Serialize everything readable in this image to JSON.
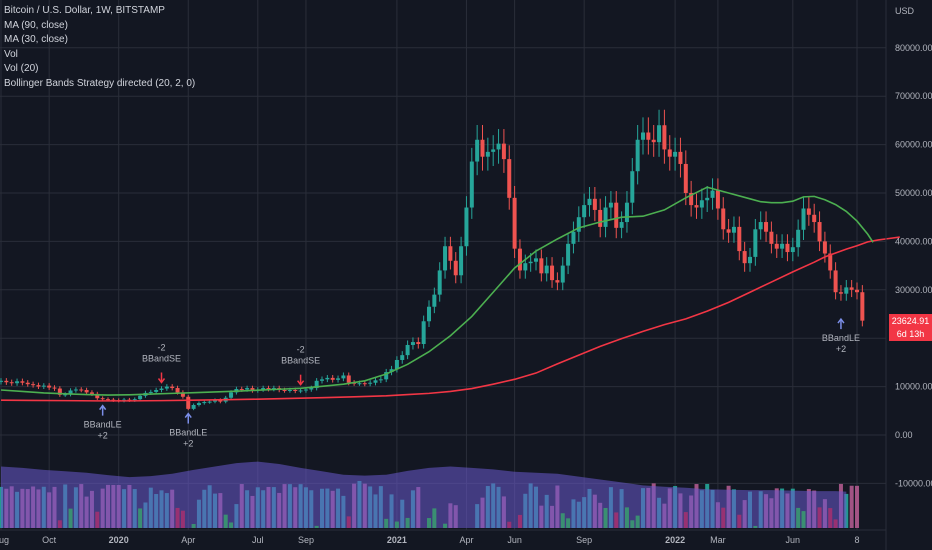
{
  "legend": {
    "title": "Bitcoin / U.S. Dollar, 1W, BITSTAMP",
    "ma90": "MA (90, close)",
    "ma30": "MA (30, close)",
    "vol": "Vol",
    "vol20": "Vol (20)",
    "strategy": "Bollinger Bands Strategy directed (20, 2, 0)"
  },
  "price_tag": {
    "price": "23624.91",
    "countdown": "6d 13h"
  },
  "colors": {
    "background": "#131722",
    "grid": "#2a2e39",
    "up": "#26a69a",
    "down": "#ef5350",
    "ma90": "#f23645",
    "ma30": "#4caf50",
    "vol_avg_fill": "#6a5acd",
    "vol_up": "#00e600",
    "vol_down": "#e60000",
    "signal_long": "#7b8ee8",
    "signal_short": "#f23645",
    "axis_text": "#b2b5be"
  },
  "chart_data": {
    "type": "candlestick",
    "currency": "USD",
    "y_axis_ticks": [
      "80000.00",
      "70000.00",
      "60000.00",
      "50000.00",
      "40000.00",
      "30000.00",
      "20000.00",
      "10000.00",
      "0.00",
      "-10000.00"
    ],
    "ylim": [
      -16000,
      84000
    ],
    "x_axis_ticks": [
      "Aug",
      "Oct",
      "2020",
      "Apr",
      "Jul",
      "Sep",
      "2021",
      "Apr",
      "Jun",
      "Sep",
      "2022",
      "Mar",
      "Jun",
      "8"
    ],
    "x_tick_weeks": [
      0,
      9,
      22,
      35,
      48,
      57,
      74,
      87,
      96,
      109,
      126,
      134,
      148,
      160
    ],
    "candles_close": [
      11200,
      10900,
      10700,
      11100,
      10800,
      10500,
      10300,
      10000,
      10200,
      9800,
      9600,
      8300,
      8400,
      9200,
      9400,
      9300,
      8800,
      8500,
      7600,
      7400,
      7300,
      7200,
      7100,
      7300,
      7200,
      7400,
      8100,
      8700,
      8900,
      9300,
      9600,
      10000,
      9700,
      8800,
      7900,
      5400,
      6200,
      6600,
      6800,
      6900,
      7200,
      6900,
      7700,
      8800,
      9500,
      9400,
      9700,
      9200,
      9400,
      9700,
      9500,
      9700,
      9300,
      9200,
      9300,
      9100,
      9200,
      9400,
      9700,
      11200,
      11500,
      11800,
      11400,
      11700,
      12300,
      10800,
      10700,
      10700,
      10600,
      10800,
      11300,
      11500,
      13000,
      13600,
      15500,
      16500,
      18600,
      19200,
      18800,
      23500,
      26500,
      29000,
      34000,
      39000,
      36000,
      33000,
      39000,
      47000,
      56500,
      61000,
      57500,
      58500,
      59000,
      60200,
      57000,
      49000,
      38500,
      34000,
      35500,
      35800,
      36500,
      33400,
      35000,
      32000,
      31500,
      35000,
      39500,
      42000,
      45000,
      47500,
      48800,
      46500,
      43000,
      47000,
      48000,
      42800,
      44000,
      48000,
      54500,
      61000,
      62500,
      61000,
      60500,
      64000,
      59000,
      57500,
      58500,
      56000,
      50000,
      47500,
      47000,
      48500,
      49000,
      50500,
      46800,
      42500,
      41800,
      43000,
      38000,
      35500,
      36800,
      42500,
      44000,
      42000,
      39500,
      38500,
      39500,
      37800,
      38800,
      42400,
      46800,
      45500,
      44000,
      40000,
      37500,
      34000,
      29500,
      29200,
      30500,
      30000,
      29500,
      23625
    ],
    "ma30": [
      9300,
      9000,
      8700,
      8500,
      8350,
      8250,
      8300,
      8450,
      8600,
      8750,
      8900,
      9050,
      9250,
      9450,
      9650,
      10050,
      10500,
      11200,
      12600,
      14600,
      17200,
      20500,
      24500,
      29500,
      34500,
      38000,
      40500,
      42800,
      44000,
      45000,
      45200,
      46500,
      49000,
      51200,
      50000,
      48800,
      48200,
      48000,
      48000,
      48300,
      49200,
      49300,
      48600,
      47600,
      46200,
      44200,
      41500,
      39800
    ],
    "ma30_weeks": [
      0,
      4,
      8,
      12,
      16,
      20,
      24,
      28,
      32,
      36,
      40,
      44,
      48,
      52,
      56,
      60,
      64,
      68,
      72,
      76,
      80,
      84,
      88,
      92,
      96,
      100,
      104,
      108,
      112,
      116,
      120,
      124,
      128,
      132,
      136,
      140,
      142,
      144,
      146,
      148,
      150,
      152,
      154,
      156,
      158,
      160,
      162,
      163
    ],
    "ma90": [
      7200,
      7150,
      7100,
      7050,
      7050,
      7100,
      7200,
      7300,
      7400,
      7550,
      7700,
      7900,
      8100,
      8350,
      8600,
      9000,
      9600,
      10500,
      11500,
      12800,
      14700,
      16500,
      18300,
      19900,
      21400,
      22800,
      24000,
      25600,
      27400,
      29500,
      31600,
      33700,
      35700,
      36800,
      37600,
      38400,
      39100,
      39900,
      40300,
      40600,
      40900
    ],
    "ma90_weeks": [
      0,
      6,
      12,
      18,
      24,
      30,
      36,
      42,
      48,
      54,
      60,
      66,
      72,
      76,
      80,
      84,
      88,
      92,
      96,
      100,
      104,
      108,
      112,
      116,
      120,
      124,
      128,
      132,
      136,
      140,
      144,
      148,
      152,
      154,
      156,
      158,
      160,
      162,
      164,
      166,
      168
    ],
    "volume_avg": [
      -6500,
      -6800,
      -7200,
      -7500,
      -7800,
      -8300,
      -8700,
      -8500,
      -8000,
      -7200,
      -6500,
      -5800,
      -5500,
      -6000,
      -6800,
      -7500,
      -8200,
      -8400,
      -8200,
      -7400,
      -6800,
      -6500,
      -6800,
      -7100,
      -7600,
      -7800,
      -8000,
      -8600,
      -9200,
      -9800,
      -10400,
      -10700,
      -10900,
      -11200,
      -11300,
      -11400,
      -11400,
      -11500,
      -11600,
      -11600,
      -11700
    ],
    "volume_avg_weeks": [
      0,
      4,
      8,
      12,
      16,
      20,
      24,
      28,
      32,
      36,
      40,
      44,
      48,
      52,
      56,
      60,
      64,
      68,
      72,
      76,
      80,
      84,
      88,
      92,
      96,
      100,
      104,
      108,
      112,
      116,
      120,
      124,
      128,
      132,
      136,
      140,
      144,
      148,
      152,
      156,
      158
    ],
    "signals": [
      {
        "week": 19,
        "type": "long",
        "label": "BBandLE",
        "qty": "+2"
      },
      {
        "week": 30,
        "type": "short",
        "label": "BBandSE",
        "qty": "-2"
      },
      {
        "week": 35,
        "type": "long",
        "label": "BBandLE",
        "qty": "+2"
      },
      {
        "week": 56,
        "type": "short",
        "label": "BBandSE",
        "qty": "-2"
      },
      {
        "week": 157,
        "type": "long",
        "label": "BBandLE",
        "qty": "+2"
      }
    ]
  }
}
